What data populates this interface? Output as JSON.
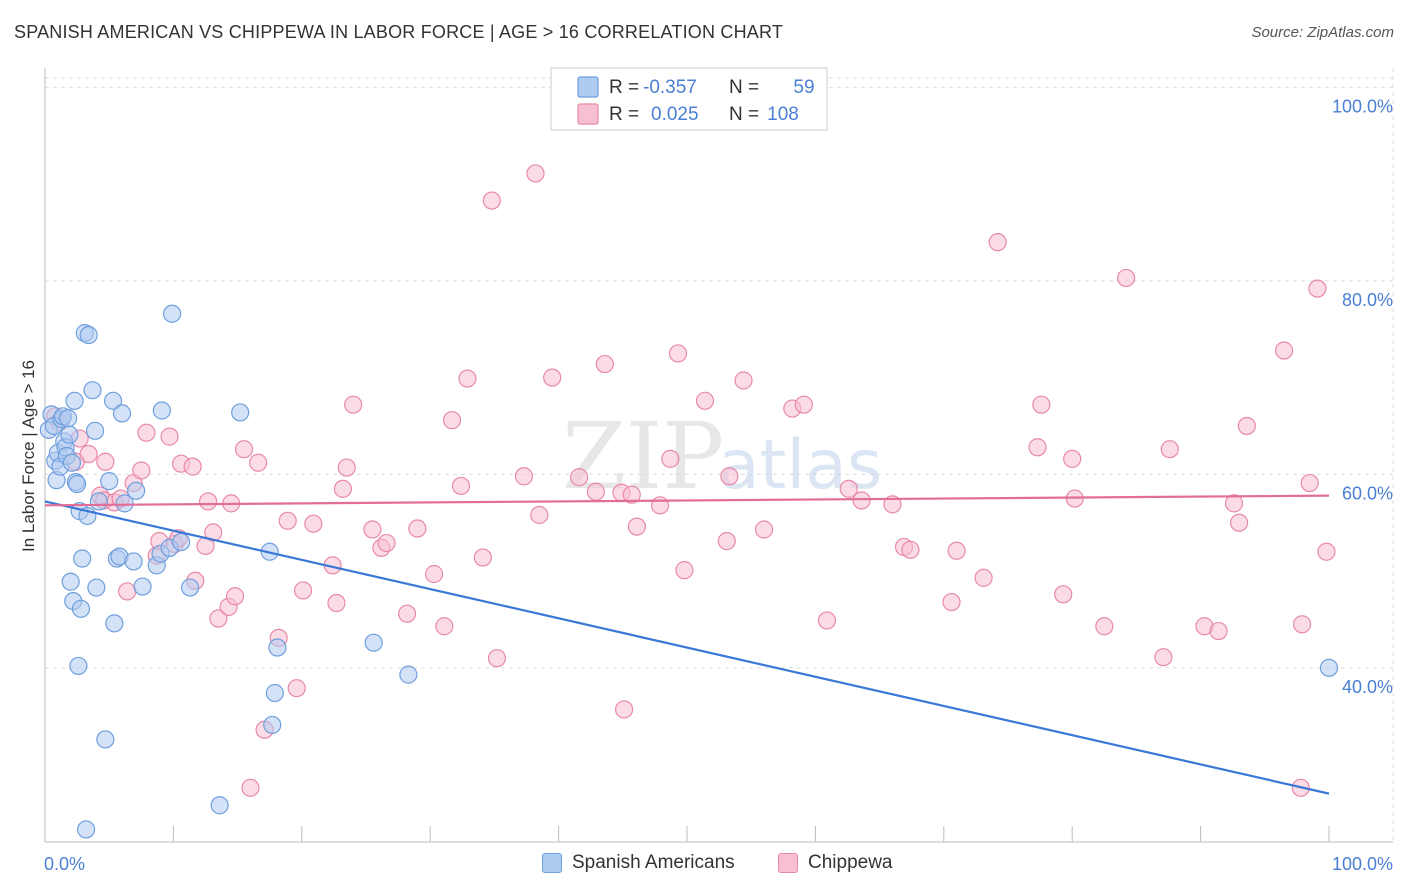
{
  "header": {
    "title": "SPANISH AMERICAN VS CHIPPEWA IN LABOR FORCE | AGE > 16 CORRELATION CHART",
    "source": "Source: ZipAtlas.com"
  },
  "watermark": {
    "zip": "ZIP",
    "atlas": "atlas"
  },
  "colors": {
    "blue_fill": "#aecbf0",
    "blue_stroke": "#6f9fde",
    "blue_line": "#3a78d8",
    "pink_fill": "#f7bfd2",
    "pink_stroke": "#e889a8",
    "pink_line": "#e26d98",
    "grid": "#dddddd",
    "tick_label": "#4a7fd4"
  },
  "legend_top": {
    "rows": [
      {
        "r_label": "R =",
        "r_value": "-0.357",
        "n_label": "N =",
        "n_value": "59"
      },
      {
        "r_label": "R =",
        "r_value": "0.025",
        "n_label": "N =",
        "n_value": "108"
      }
    ]
  },
  "legend_bottom": {
    "items": [
      "Spanish Americans",
      "Chippewa"
    ]
  },
  "chart_data": {
    "type": "scatter",
    "title": "SPANISH AMERICAN VS CHIPPEWA IN LABOR FORCE | AGE > 16 CORRELATION CHART",
    "xlabel": "",
    "ylabel": "In Labor Force | Age > 16",
    "xlim": [
      0,
      100
    ],
    "ylim": [
      22,
      102
    ],
    "x_tick_labels": [
      "0.0%",
      "100.0%"
    ],
    "y_ticks": [
      40,
      60,
      80,
      100
    ],
    "y_tick_labels": [
      "40.0%",
      "60.0%",
      "80.0%",
      "100.0%"
    ],
    "grid": true,
    "series": [
      {
        "name": "Spanish Americans",
        "R": -0.357,
        "N": 59,
        "trend": {
          "x": [
            0,
            100
          ],
          "y": [
            57.2,
            27.0
          ]
        },
        "points": [
          [
            0.3,
            64.6
          ],
          [
            0.5,
            66.2
          ],
          [
            0.7,
            65.0
          ],
          [
            0.8,
            61.4
          ],
          [
            0.9,
            59.4
          ],
          [
            1.0,
            62.2
          ],
          [
            1.2,
            60.8
          ],
          [
            1.3,
            65.7
          ],
          [
            1.4,
            66.0
          ],
          [
            1.5,
            63.4
          ],
          [
            1.6,
            62.8
          ],
          [
            1.7,
            61.9
          ],
          [
            1.8,
            65.8
          ],
          [
            1.9,
            64.1
          ],
          [
            2.0,
            48.9
          ],
          [
            2.1,
            61.2
          ],
          [
            2.2,
            46.9
          ],
          [
            2.3,
            67.6
          ],
          [
            2.4,
            59.2
          ],
          [
            2.5,
            59.0
          ],
          [
            2.6,
            40.2
          ],
          [
            2.7,
            56.2
          ],
          [
            2.8,
            46.1
          ],
          [
            2.9,
            51.3
          ],
          [
            3.1,
            74.6
          ],
          [
            3.3,
            55.7
          ],
          [
            3.4,
            74.4
          ],
          [
            3.7,
            68.7
          ],
          [
            3.9,
            64.5
          ],
          [
            4.0,
            48.3
          ],
          [
            4.2,
            57.2
          ],
          [
            4.7,
            32.6
          ],
          [
            5.0,
            59.3
          ],
          [
            5.3,
            67.6
          ],
          [
            5.4,
            44.6
          ],
          [
            5.6,
            51.3
          ],
          [
            5.8,
            51.5
          ],
          [
            6.0,
            66.3
          ],
          [
            6.2,
            57.0
          ],
          [
            6.9,
            51.0
          ],
          [
            7.1,
            58.3
          ],
          [
            7.6,
            48.4
          ],
          [
            8.7,
            50.6
          ],
          [
            9.0,
            51.8
          ],
          [
            9.1,
            66.6
          ],
          [
            9.7,
            52.4
          ],
          [
            9.9,
            76.6
          ],
          [
            10.6,
            53.0
          ],
          [
            11.3,
            48.3
          ],
          [
            13.6,
            25.8
          ],
          [
            15.2,
            66.4
          ],
          [
            17.5,
            52.0
          ],
          [
            17.7,
            34.1
          ],
          [
            17.9,
            37.4
          ],
          [
            18.1,
            42.1
          ],
          [
            25.6,
            42.6
          ],
          [
            28.3,
            39.3
          ],
          [
            3.2,
            23.3
          ],
          [
            100.0,
            40.0
          ]
        ]
      },
      {
        "name": "Chippewa",
        "R": 0.025,
        "N": 108,
        "trend": {
          "x": [
            0,
            100
          ],
          "y": [
            56.8,
            57.8
          ]
        },
        "points": [
          [
            0.8,
            66.0
          ],
          [
            1.1,
            65.4
          ],
          [
            2.4,
            61.3
          ],
          [
            2.7,
            63.7
          ],
          [
            3.4,
            62.1
          ],
          [
            4.3,
            57.8
          ],
          [
            4.6,
            57.3
          ],
          [
            4.7,
            61.3
          ],
          [
            5.4,
            57.1
          ],
          [
            5.9,
            57.5
          ],
          [
            6.4,
            47.9
          ],
          [
            6.9,
            59.1
          ],
          [
            7.5,
            60.4
          ],
          [
            7.9,
            64.3
          ],
          [
            8.7,
            51.6
          ],
          [
            8.9,
            53.1
          ],
          [
            9.7,
            63.9
          ],
          [
            10.1,
            52.8
          ],
          [
            10.4,
            53.4
          ],
          [
            10.6,
            61.1
          ],
          [
            11.5,
            60.8
          ],
          [
            11.7,
            49.0
          ],
          [
            12.5,
            52.6
          ],
          [
            12.7,
            57.2
          ],
          [
            13.1,
            54.0
          ],
          [
            13.5,
            45.1
          ],
          [
            14.3,
            46.3
          ],
          [
            14.5,
            57.0
          ],
          [
            14.8,
            47.4
          ],
          [
            15.5,
            62.6
          ],
          [
            16.0,
            27.6
          ],
          [
            16.6,
            61.2
          ],
          [
            17.1,
            33.6
          ],
          [
            18.2,
            43.1
          ],
          [
            18.9,
            55.2
          ],
          [
            19.6,
            37.9
          ],
          [
            20.1,
            48.0
          ],
          [
            20.9,
            54.9
          ],
          [
            22.4,
            50.6
          ],
          [
            22.7,
            46.7
          ],
          [
            23.2,
            58.5
          ],
          [
            23.5,
            60.7
          ],
          [
            24.0,
            67.2
          ],
          [
            25.5,
            54.3
          ],
          [
            26.2,
            52.4
          ],
          [
            26.6,
            52.9
          ],
          [
            28.2,
            45.6
          ],
          [
            29.0,
            54.4
          ],
          [
            31.1,
            44.3
          ],
          [
            31.7,
            65.6
          ],
          [
            32.4,
            58.8
          ],
          [
            32.9,
            69.9
          ],
          [
            34.1,
            51.4
          ],
          [
            34.8,
            88.3
          ],
          [
            37.3,
            59.8
          ],
          [
            38.2,
            91.1
          ],
          [
            39.5,
            70.0
          ],
          [
            41.6,
            59.7
          ],
          [
            42.9,
            58.2
          ],
          [
            43.6,
            71.4
          ],
          [
            44.9,
            58.1
          ],
          [
            45.1,
            35.7
          ],
          [
            45.7,
            57.9
          ],
          [
            46.1,
            54.6
          ],
          [
            47.9,
            56.8
          ],
          [
            48.7,
            61.6
          ],
          [
            49.3,
            72.5
          ],
          [
            49.8,
            50.1
          ],
          [
            51.4,
            67.6
          ],
          [
            53.1,
            53.1
          ],
          [
            53.3,
            59.8
          ],
          [
            54.4,
            69.7
          ],
          [
            56.0,
            54.3
          ],
          [
            58.2,
            66.8
          ],
          [
            59.1,
            67.2
          ],
          [
            62.6,
            58.5
          ],
          [
            63.6,
            57.3
          ],
          [
            66.0,
            56.9
          ],
          [
            66.9,
            52.5
          ],
          [
            67.4,
            52.2
          ],
          [
            70.6,
            46.8
          ],
          [
            71.0,
            52.1
          ],
          [
            73.1,
            49.3
          ],
          [
            74.2,
            84.0
          ],
          [
            77.3,
            62.8
          ],
          [
            77.6,
            67.2
          ],
          [
            79.3,
            47.6
          ],
          [
            80.0,
            61.6
          ],
          [
            80.2,
            57.5
          ],
          [
            82.5,
            44.3
          ],
          [
            84.2,
            80.3
          ],
          [
            87.1,
            41.1
          ],
          [
            87.6,
            62.6
          ],
          [
            90.3,
            44.3
          ],
          [
            91.4,
            43.8
          ],
          [
            92.6,
            57.0
          ],
          [
            93.0,
            55.0
          ],
          [
            93.6,
            65.0
          ],
          [
            96.5,
            72.8
          ],
          [
            97.8,
            27.6
          ],
          [
            98.5,
            59.1
          ],
          [
            99.1,
            79.2
          ],
          [
            99.8,
            52.0
          ],
          [
            97.9,
            44.5
          ],
          [
            35.2,
            41.0
          ],
          [
            30.3,
            49.7
          ],
          [
            38.5,
            55.8
          ],
          [
            60.9,
            44.9
          ]
        ]
      }
    ]
  }
}
